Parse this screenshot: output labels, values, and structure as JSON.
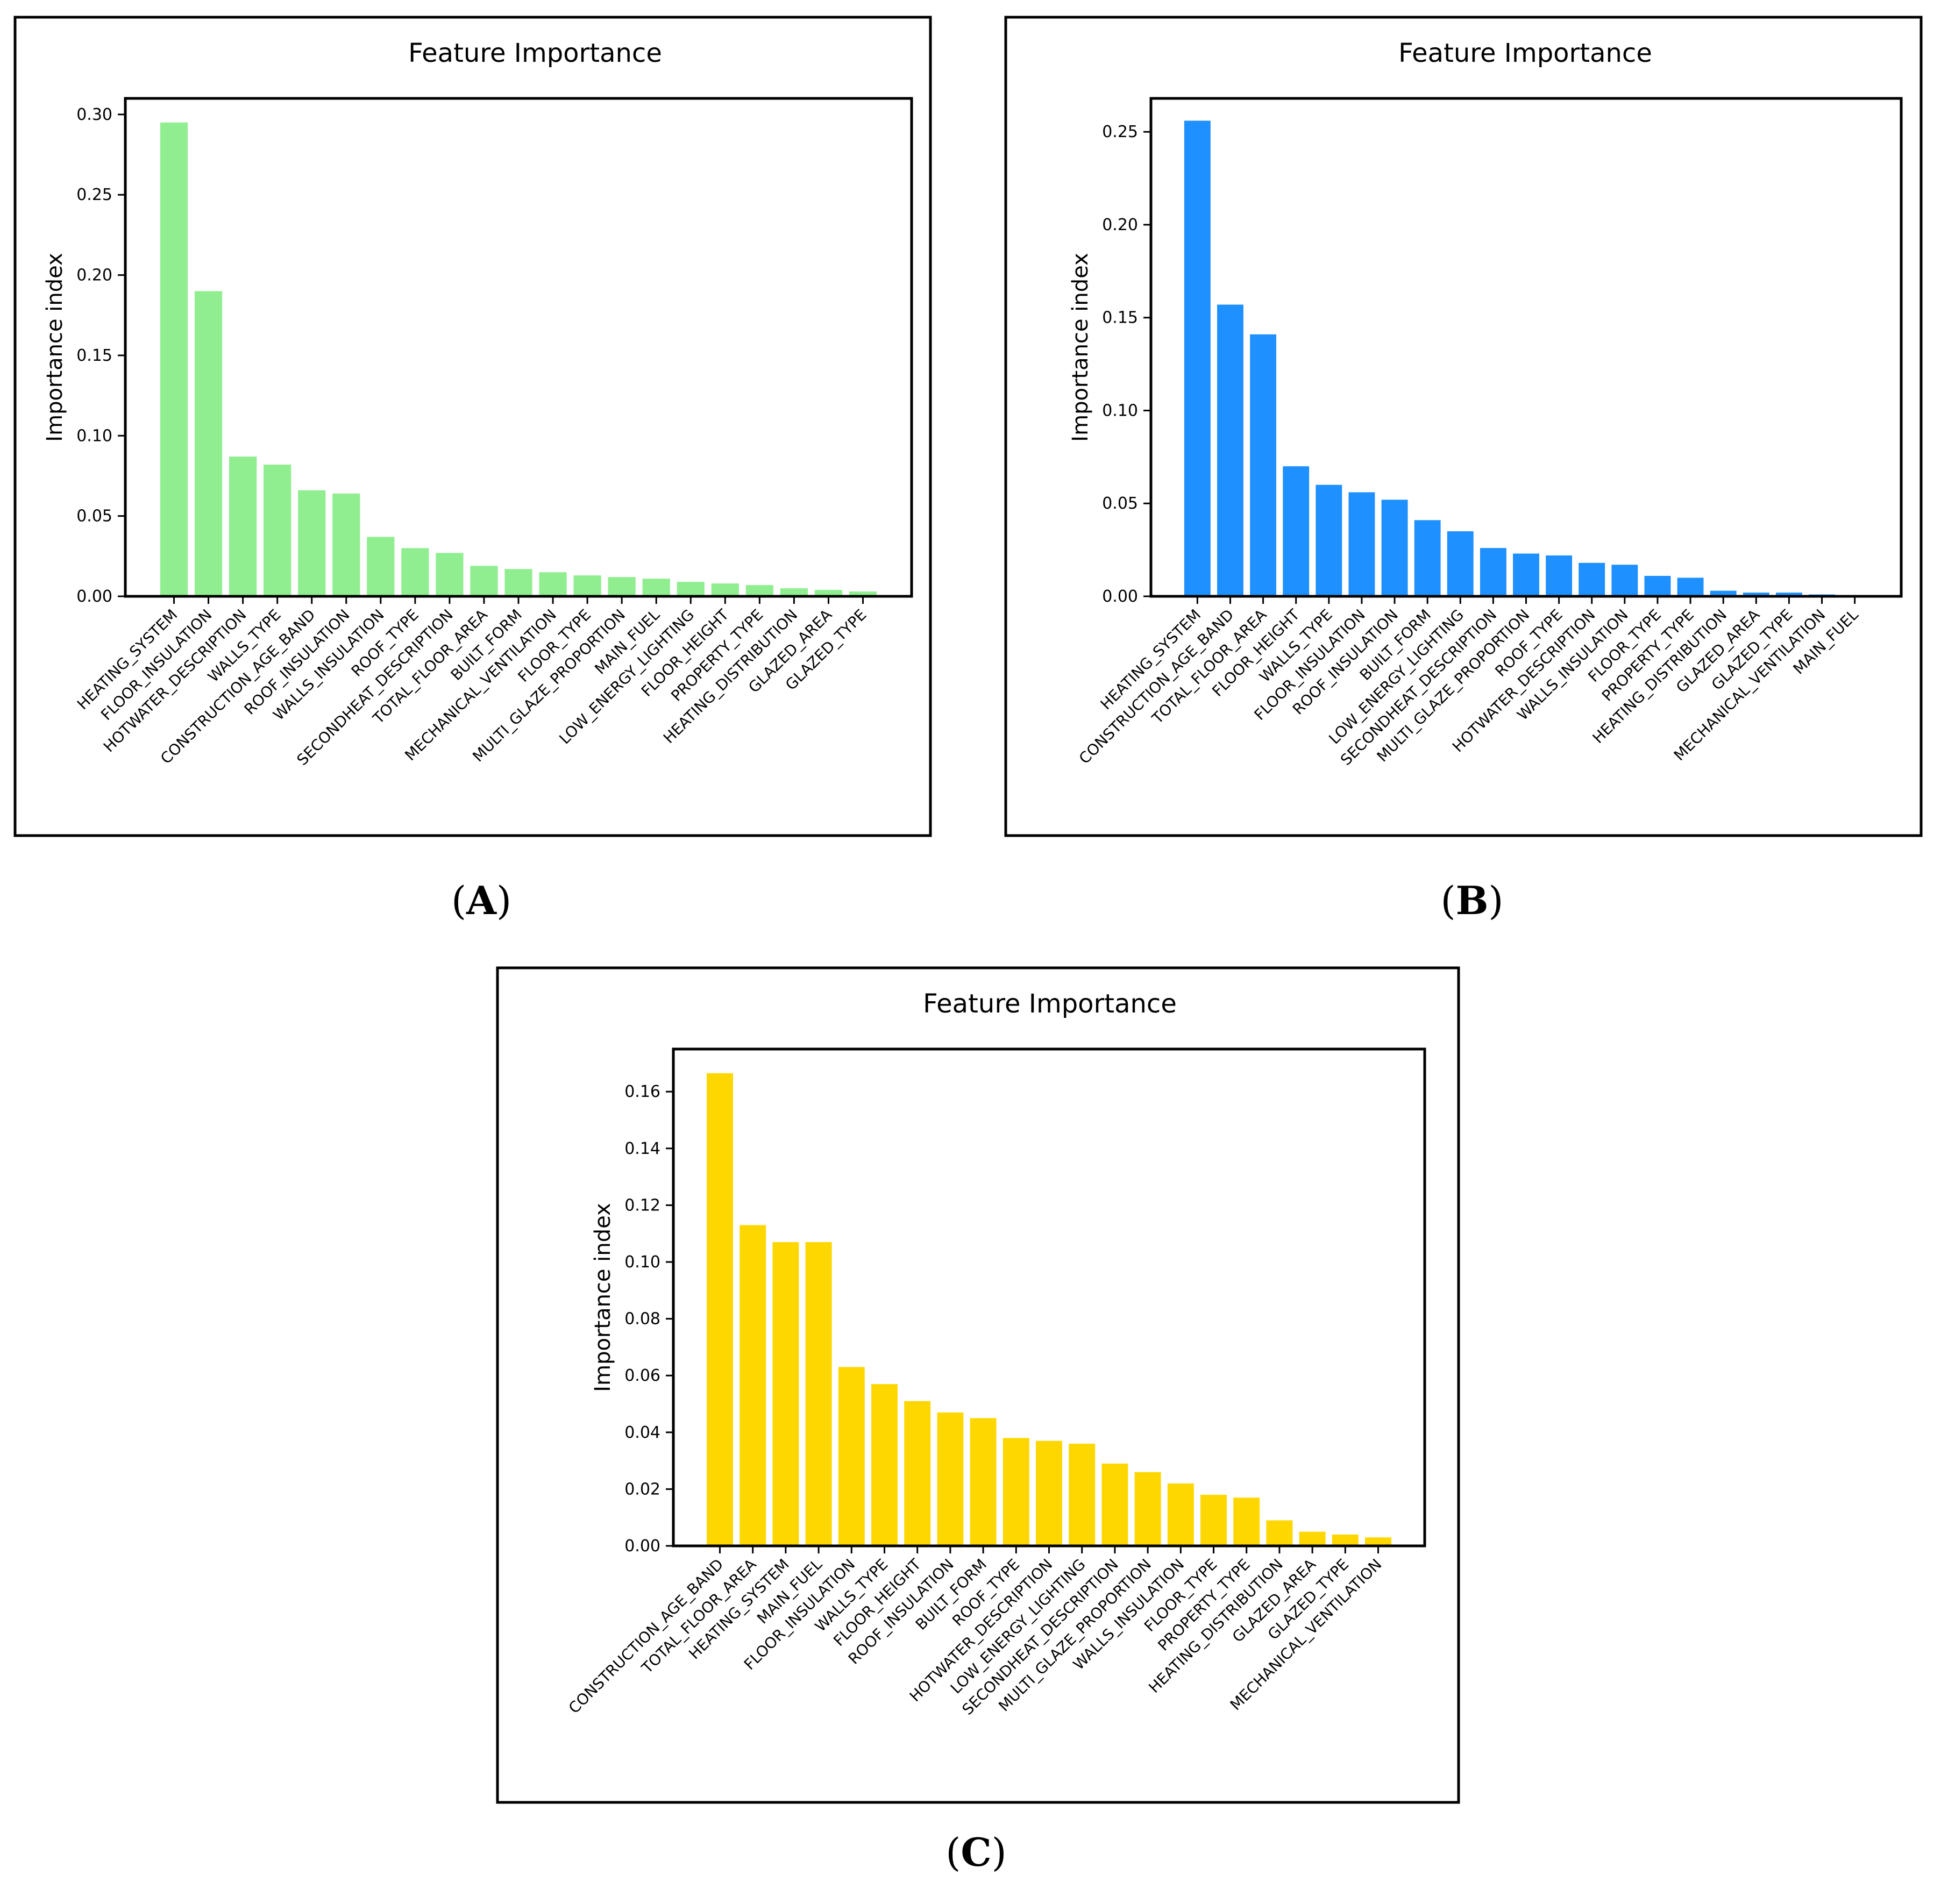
{
  "figure": {
    "captions": [
      "A",
      "B",
      "C"
    ]
  },
  "chart_data": [
    {
      "type": "bar",
      "title": "Feature Importance",
      "xlabel": "",
      "ylabel": "Importance index",
      "color": "#90ee90",
      "ylim": [
        0,
        0.31
      ],
      "yticks": [
        0.0,
        0.05,
        0.1,
        0.15,
        0.2,
        0.25,
        0.3
      ],
      "ytick_labels": [
        "0.00",
        "0.05",
        "0.10",
        "0.15",
        "0.20",
        "0.25",
        "0.30"
      ],
      "categories": [
        "HEATING_SYSTEM",
        "FLOOR_INSULATION",
        "HOTWATER_DESCRIPTION",
        "WALLS_TYPE",
        "CONSTRUCTION_AGE_BAND",
        "ROOF_INSULATION",
        "WALLS_INSULATION",
        "ROOF_TYPE",
        "SECONDHEAT_DESCRIPTION",
        "TOTAL_FLOOR_AREA",
        "BUILT_FORM",
        "MECHANICAL_VENTILATION",
        "FLOOR_TYPE",
        "MULTI_GLAZE_PROPORTION",
        "MAIN_FUEL",
        "LOW_ENERGY_LIGHTING",
        "FLOOR_HEIGHT",
        "PROPERTY_TYPE",
        "HEATING_DISTRIBUTION",
        "GLAZED_AREA",
        "GLAZED_TYPE"
      ],
      "values": [
        0.295,
        0.19,
        0.087,
        0.082,
        0.066,
        0.064,
        0.037,
        0.03,
        0.027,
        0.019,
        0.017,
        0.015,
        0.013,
        0.012,
        0.011,
        0.009,
        0.008,
        0.007,
        0.005,
        0.004,
        0.003
      ]
    },
    {
      "type": "bar",
      "title": "Feature Importance",
      "xlabel": "",
      "ylabel": "Importance index",
      "color": "#1e90ff",
      "ylim": [
        0,
        0.268
      ],
      "yticks": [
        0.0,
        0.05,
        0.1,
        0.15,
        0.2,
        0.25
      ],
      "ytick_labels": [
        "0.00",
        "0.05",
        "0.10",
        "0.15",
        "0.20",
        "0.25"
      ],
      "categories": [
        "HEATING_SYSTEM",
        "CONSTRUCTION_AGE_BAND",
        "TOTAL_FLOOR_AREA",
        "FLOOR_HEIGHT",
        "WALLS_TYPE",
        "FLOOR_INSULATION",
        "ROOF_INSULATION",
        "BUILT_FORM",
        "LOW_ENERGY_LIGHTING",
        "SECONDHEAT_DESCRIPTION",
        "MULTI_GLAZE_PROPORTION",
        "ROOF_TYPE",
        "HOTWATER_DESCRIPTION",
        "WALLS_INSULATION",
        "FLOOR_TYPE",
        "PROPERTY_TYPE",
        "HEATING_DISTRIBUTION",
        "GLAZED_AREA",
        "GLAZED_TYPE",
        "MECHANICAL_VENTILATION",
        "MAIN_FUEL"
      ],
      "values": [
        0.256,
        0.157,
        0.141,
        0.07,
        0.06,
        0.056,
        0.052,
        0.041,
        0.035,
        0.026,
        0.023,
        0.022,
        0.018,
        0.017,
        0.011,
        0.01,
        0.003,
        0.002,
        0.002,
        0.001,
        0.0005
      ]
    },
    {
      "type": "bar",
      "title": "Feature Importance",
      "xlabel": "",
      "ylabel": "Importance index",
      "color": "#ffd700",
      "ylim": [
        0,
        0.175
      ],
      "yticks": [
        0.0,
        0.02,
        0.04,
        0.06,
        0.08,
        0.1,
        0.12,
        0.14,
        0.16
      ],
      "ytick_labels": [
        "0.00",
        "0.02",
        "0.04",
        "0.06",
        "0.08",
        "0.10",
        "0.12",
        "0.14",
        "0.16"
      ],
      "categories": [
        "CONSTRUCTION_AGE_BAND",
        "TOTAL_FLOOR_AREA",
        "HEATING_SYSTEM",
        "MAIN_FUEL",
        "FLOOR_INSULATION",
        "WALLS_TYPE",
        "FLOOR_HEIGHT",
        "ROOF_INSULATION",
        "BUILT_FORM",
        "ROOF_TYPE",
        "HOTWATER_DESCRIPTION",
        "LOW_ENERGY_LIGHTING",
        "SECONDHEAT_DESCRIPTION",
        "MULTI_GLAZE_PROPORTION",
        "WALLS_INSULATION",
        "FLOOR_TYPE",
        "PROPERTY_TYPE",
        "HEATING_DISTRIBUTION",
        "GLAZED_AREA",
        "GLAZED_TYPE",
        "MECHANICAL_VENTILATION"
      ],
      "values": [
        0.1665,
        0.113,
        0.107,
        0.107,
        0.063,
        0.057,
        0.051,
        0.047,
        0.045,
        0.038,
        0.037,
        0.036,
        0.029,
        0.026,
        0.022,
        0.018,
        0.017,
        0.009,
        0.005,
        0.004,
        0.003
      ]
    }
  ]
}
